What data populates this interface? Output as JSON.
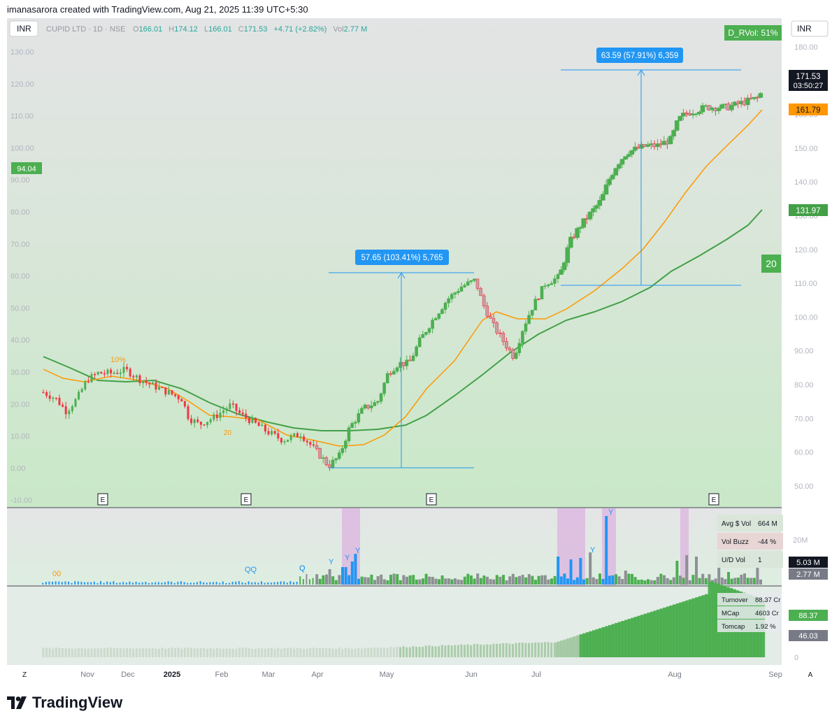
{
  "caption": "imanasarora created with TradingView.com, Aug 21, 2025 11:39 UTC+5:30",
  "logo_text": "TradingView",
  "logo_icon": "tradingview-logo-icon",
  "colors": {
    "up": "#4caf50",
    "down": "#f23645",
    "accent": "#2196f3",
    "ema_fast": "#ff9800",
    "ema_slow": "#43a047",
    "bg": "#cfe9d0",
    "bg_top": "#e0e2e3"
  },
  "header": {
    "currency_left": "INR",
    "currency_right": "INR",
    "symbol": "CUPID LTD · 1D · NSE",
    "o_label": "O",
    "o_value": "166.01",
    "h_label": "H",
    "h_value": "174.12",
    "l_label": "L",
    "l_value": "166.01",
    "c_label": "C",
    "c_value": "171.53",
    "change": "+4.71 (+2.82%)",
    "vol_label": "Vol",
    "vol_value": "2.77 M",
    "rvol_badge": "D_RVol: 51%"
  },
  "left_axis": [
    "130.00",
    "120.00",
    "110.00",
    "100.00",
    "90.00",
    "80.00",
    "70.00",
    "60.00",
    "50.00",
    "40.00",
    "30.00",
    "20.00",
    "10.00",
    "0.00",
    "-10.00"
  ],
  "left_badge": "94.04",
  "right_axis": [
    "180.00",
    "170.00",
    "160.00",
    "150.00",
    "140.00",
    "130.00",
    "120.00",
    "110.00",
    "100.00",
    "90.00",
    "80.00",
    "70.00",
    "60.00",
    "50.00"
  ],
  "price_labels": {
    "last": "171.53",
    "countdown": "03:50:27",
    "ema_fast": "161.79",
    "ema_slow": "131.97"
  },
  "period_badge": "20",
  "annotations": {
    "move1": "57.65 (103.41%) 5,765",
    "move2": "63.59 (57.91%) 6,359",
    "pct_marker": "10%",
    "ma_marker": "20"
  },
  "earnings_marker": "E",
  "x_axis": [
    "Nov",
    "Dec",
    "2025",
    "Feb",
    "Mar",
    "Apr",
    "May",
    "Jun",
    "Jul",
    "Aug",
    "Sep"
  ],
  "axis_buttons": {
    "left": "Z",
    "right": "A"
  },
  "volume_pane": {
    "table": [
      {
        "label": "Avg $ Vol",
        "value": "664 M"
      },
      {
        "label": "Vol Buzz",
        "value": "-44 %"
      },
      {
        "label": "U/D Vol",
        "value": "1"
      }
    ],
    "axis": "20M",
    "labels": {
      "a": "5.03 M",
      "b": "2.77 M"
    },
    "markers": [
      "00",
      "Q",
      "QQ",
      "Q",
      "Y",
      "Y",
      "Y",
      "Y",
      "Y"
    ]
  },
  "turnover_pane": {
    "table": [
      {
        "label": "Turnover",
        "value": "88.37 Cr"
      },
      {
        "label": "MCap",
        "value": "4603 Cr"
      },
      {
        "label": "Tomcap",
        "value": "1.92 %"
      }
    ],
    "axis_zero": "0",
    "labels": {
      "a": "88.37",
      "b": "46.03"
    }
  }
}
